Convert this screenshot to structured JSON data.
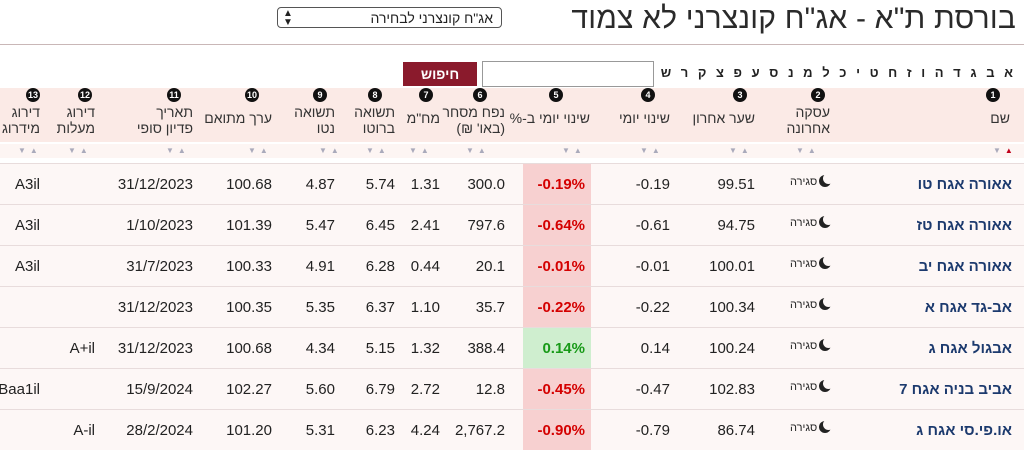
{
  "title": "בורסת ת\"א - אג\"ח קונצרני לא צמוד",
  "select": {
    "value": "אג\"ח קונצרני לבחירה"
  },
  "letters": "א ב ג ד ה ו ז ח ט י כ ל מ נ ס ע פ צ ק ר ש ת",
  "search": {
    "placeholder": "",
    "button": "חיפוש"
  },
  "columns": [
    {
      "n": "1",
      "label": "שם"
    },
    {
      "n": "2",
      "label": "עסקה\nאחרונה"
    },
    {
      "n": "3",
      "label": "שער אחרון"
    },
    {
      "n": "4",
      "label": "שינוי יומי"
    },
    {
      "n": "5",
      "label": "שינוי יומי ב-%"
    },
    {
      "n": "6",
      "label": "נפח מסחר\n(באו' ₪)"
    },
    {
      "n": "7",
      "label": "מח\"מ"
    },
    {
      "n": "8",
      "label": "תשואה\nברוטו"
    },
    {
      "n": "9",
      "label": "תשואה\nנטו"
    },
    {
      "n": "10",
      "label": "ערך מתואם"
    },
    {
      "n": "11",
      "label": "תאריך\nפדיון סופי"
    },
    {
      "n": "12",
      "label": "דירוג\nמעלות"
    },
    {
      "n": "13",
      "label": "דירוג\nמידרוג"
    }
  ],
  "rows": [
    {
      "name": "אאורה אגח טו",
      "deal": "סגירה",
      "last": "99.51",
      "chg": "-0.19",
      "pct": "-0.19%",
      "vol": "300.0",
      "dur": "1.31",
      "gross": "5.74",
      "net": "4.87",
      "adj": "100.68",
      "mat": "31/12/2023",
      "maalot": "",
      "midroog": "A3il"
    },
    {
      "name": "אאורה אגח טז",
      "deal": "סגירה",
      "last": "94.75",
      "chg": "-0.61",
      "pct": "-0.64%",
      "vol": "797.6",
      "dur": "2.41",
      "gross": "6.45",
      "net": "5.47",
      "adj": "101.39",
      "mat": "1/10/2023",
      "maalot": "",
      "midroog": "A3il"
    },
    {
      "name": "אאורה אגח יב",
      "deal": "סגירה",
      "last": "100.01",
      "chg": "-0.01",
      "pct": "-0.01%",
      "vol": "20.1",
      "dur": "0.44",
      "gross": "6.28",
      "net": "4.91",
      "adj": "100.33",
      "mat": "31/7/2023",
      "maalot": "",
      "midroog": "A3il"
    },
    {
      "name": "אב-גד אגח א",
      "deal": "סגירה",
      "last": "100.34",
      "chg": "-0.22",
      "pct": "-0.22%",
      "vol": "35.7",
      "dur": "1.10",
      "gross": "6.37",
      "net": "5.35",
      "adj": "100.35",
      "mat": "31/12/2023",
      "maalot": "",
      "midroog": ""
    },
    {
      "name": "אבגול אגח ג",
      "deal": "סגירה",
      "last": "100.24",
      "chg": "0.14",
      "pct": "0.14%",
      "vol": "388.4",
      "dur": "1.32",
      "gross": "5.15",
      "net": "4.34",
      "adj": "100.68",
      "mat": "31/12/2023",
      "maalot": "A+il",
      "midroog": ""
    },
    {
      "name": "אביב בניה אגח 7",
      "deal": "סגירה",
      "last": "102.83",
      "chg": "-0.47",
      "pct": "-0.45%",
      "vol": "12.8",
      "dur": "2.72",
      "gross": "6.79",
      "net": "5.60",
      "adj": "102.27",
      "mat": "15/9/2024",
      "maalot": "",
      "midroog": "Baa1il"
    },
    {
      "name": "או.פי.סי אגח ג",
      "deal": "סגירה",
      "last": "86.74",
      "chg": "-0.79",
      "pct": "-0.90%",
      "vol": "2,767.2",
      "dur": "4.24",
      "gross": "6.23",
      "net": "5.31",
      "adj": "101.20",
      "mat": "28/2/2024",
      "maalot": "A-il",
      "midroog": ""
    }
  ]
}
